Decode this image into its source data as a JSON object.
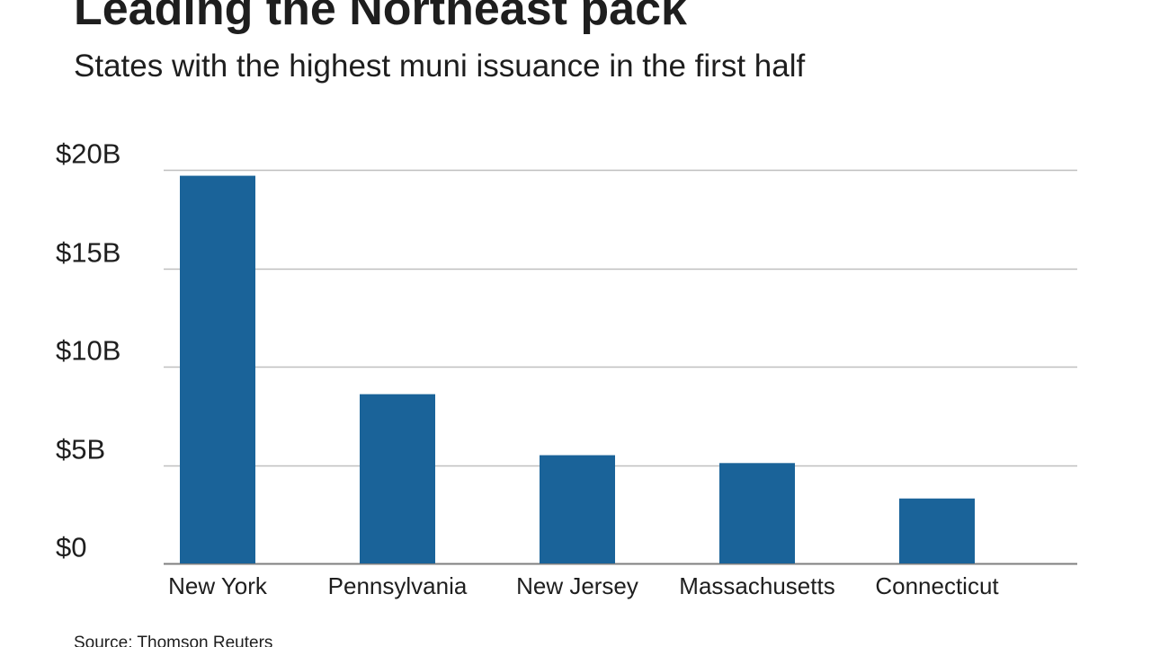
{
  "header": {
    "title": "Leading the Northeast pack",
    "subtitle": "States with the highest muni issuance in the first half"
  },
  "footer": {
    "source": "Source: Thomson Reuters"
  },
  "colors": {
    "bar": "#1a6399",
    "grid": "#bfbfbf",
    "axis": "#7f7f7f",
    "text": "#1e1e1e"
  },
  "chart_data": {
    "type": "bar",
    "title": "Leading the Northeast pack",
    "subtitle": "States with the highest muni issuance in the first half",
    "categories": [
      "New York",
      "Pennsylvania",
      "New Jersey",
      "Massachusetts",
      "Connecticut"
    ],
    "values": [
      19.7,
      8.6,
      5.5,
      5.1,
      3.3
    ],
    "unit": "billions of dollars",
    "ylim": [
      0,
      20
    ],
    "yticks": [
      0,
      5,
      10,
      15,
      20
    ],
    "ytick_labels": [
      "$0",
      "$5B",
      "$10B",
      "$15B",
      "$20B"
    ],
    "xlabel": "",
    "ylabel": "",
    "grid": true,
    "legend": "none"
  }
}
